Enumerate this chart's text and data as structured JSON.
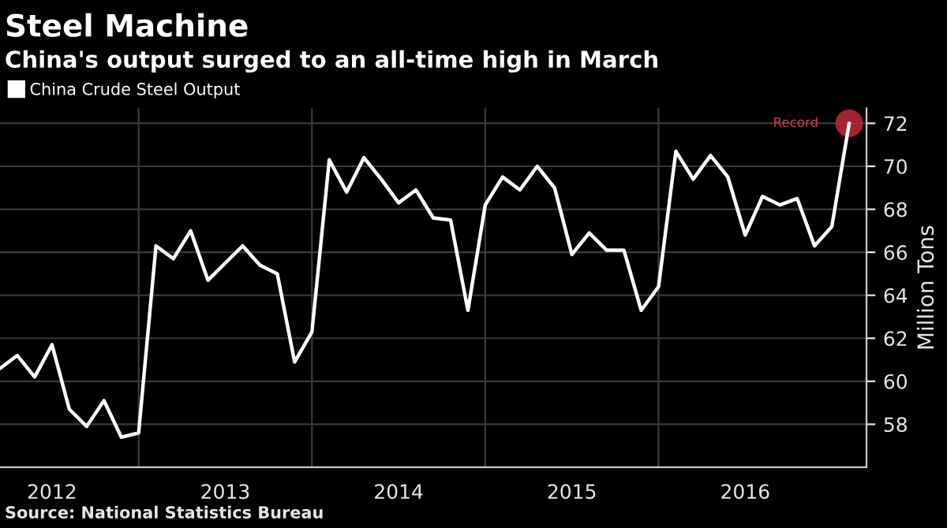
{
  "chart_data": {
    "type": "line",
    "title": "Steel Machine",
    "subtitle": "China's output surged to an all-time high in March",
    "ylabel": "Million Tons",
    "x": [
      2012.2,
      2012.3,
      2012.4,
      2012.5,
      2012.6,
      2012.7,
      2012.8,
      2012.9,
      2013.0,
      2013.1,
      2013.2,
      2013.3,
      2013.4,
      2013.5,
      2013.6,
      2013.7,
      2013.8,
      2013.9,
      2014.0,
      2014.1,
      2014.2,
      2014.3,
      2014.4,
      2014.5,
      2014.6,
      2014.7,
      2014.8,
      2014.9,
      2015.0,
      2015.1,
      2015.2,
      2015.3,
      2015.4,
      2015.5,
      2015.6,
      2015.7,
      2015.8,
      2015.9,
      2016.0,
      2016.1,
      2016.2,
      2016.3,
      2016.4,
      2016.5,
      2016.6,
      2016.7,
      2016.8,
      2016.9,
      2017.0,
      2017.1
    ],
    "series": [
      {
        "name": "China Crude Steel Output",
        "color": "#ffffff",
        "values": [
          60.6,
          61.2,
          60.2,
          61.7,
          58.7,
          57.9,
          59.1,
          57.4,
          57.6,
          66.3,
          65.7,
          67.0,
          64.7,
          65.5,
          66.3,
          65.4,
          65.0,
          60.9,
          62.3,
          70.3,
          68.8,
          70.4,
          69.4,
          68.3,
          68.9,
          67.6,
          67.5,
          63.3,
          68.2,
          69.5,
          68.9,
          70.0,
          69.0,
          65.9,
          66.9,
          66.1,
          66.1,
          63.3,
          64.4,
          70.7,
          69.4,
          70.5,
          69.5,
          66.8,
          68.6,
          68.2,
          68.5,
          66.3,
          67.2,
          72.0
        ]
      },
      {
        "type": "scatter",
        "marker": "circle",
        "color": "#c0283a",
        "values": [
          null,
          null,
          null,
          null,
          null,
          null,
          null,
          null,
          null,
          null,
          null,
          null,
          null,
          null,
          null,
          null,
          null,
          null,
          null,
          null,
          null,
          null,
          null,
          null,
          null,
          null,
          null,
          null,
          null,
          null,
          null,
          null,
          null,
          null,
          null,
          null,
          null,
          null,
          null,
          null,
          null,
          null,
          null,
          null,
          null,
          null,
          null,
          null,
          null,
          72.0
        ]
      }
    ],
    "xlim": [
      2012.2,
      2017.2
    ],
    "xticks": [
      {
        "value": 2012.5,
        "label": "2012"
      },
      {
        "value": 2013,
        "label": null
      },
      {
        "value": 2013.5,
        "label": "2013"
      },
      {
        "value": 2014,
        "label": null
      },
      {
        "value": 2014.5,
        "label": "2014"
      },
      {
        "value": 2015,
        "label": null
      },
      {
        "value": 2015.5,
        "label": "2015"
      },
      {
        "value": 2016,
        "label": null
      },
      {
        "value": 2016.5,
        "label": "2016"
      }
    ],
    "ylim": [
      56,
      72.7
    ],
    "yticks": [
      58,
      60,
      62,
      64,
      66,
      68,
      70,
      72
    ],
    "grid": true,
    "legend": "top left",
    "marker": "none",
    "line_style": "solid",
    "annotations": [
      {
        "text": "Record",
        "x": 2017.1,
        "y": 72.0
      },
      "Source: National Statistics Bureau"
    ]
  }
}
